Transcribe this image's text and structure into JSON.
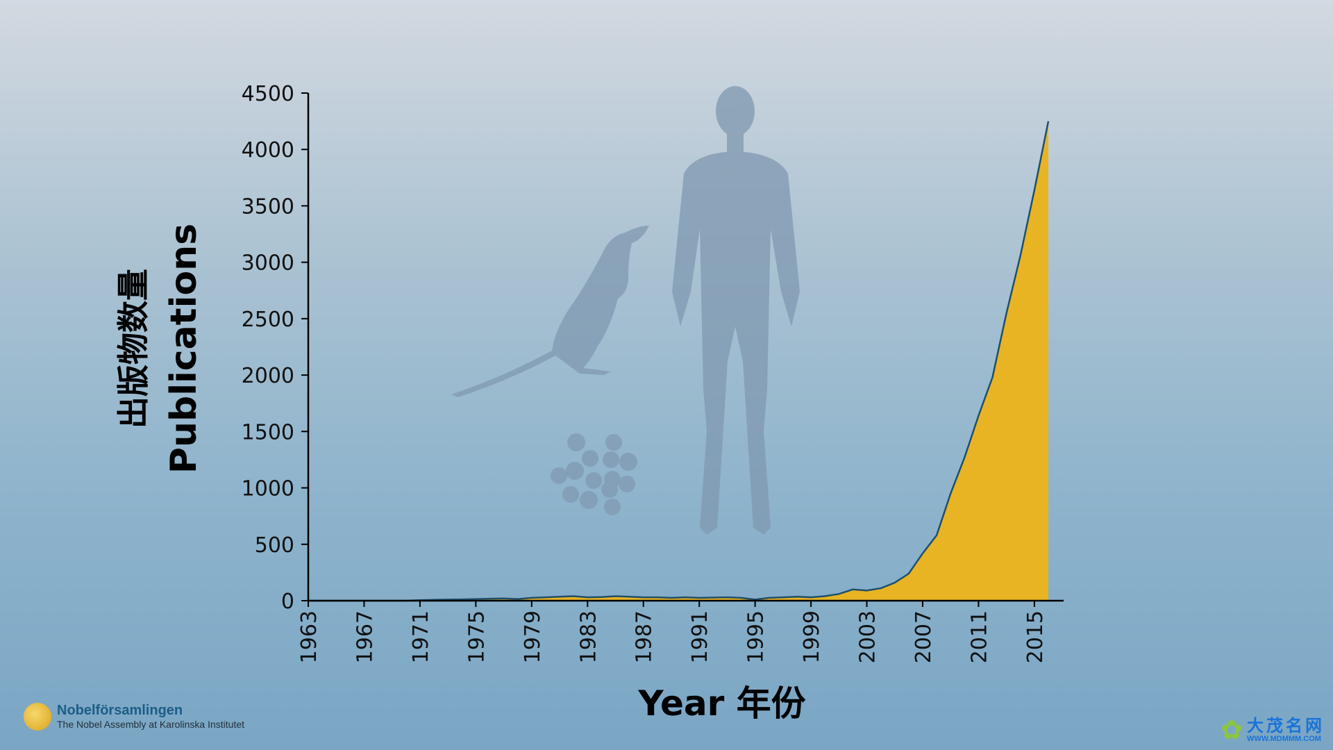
{
  "chart_data": {
    "type": "area",
    "xlabel": "Year 年份",
    "ylabel_en": "Publications",
    "ylabel_cn": "出版物数量",
    "x_ticks": [
      "1963",
      "1967",
      "1971",
      "1975",
      "1979",
      "1983",
      "1987",
      "1991",
      "1995",
      "1999",
      "2003",
      "2007",
      "2011",
      "2015"
    ],
    "y_ticks": [
      0,
      500,
      1000,
      1500,
      2000,
      2500,
      3000,
      3500,
      4000,
      4500
    ],
    "xlim": [
      1963,
      2017
    ],
    "ylim": [
      0,
      4500
    ],
    "grid": false,
    "fill_color": "#e8b423",
    "line_color": "#1f4f6b",
    "series": [
      {
        "x": [
          1963,
          1964,
          1965,
          1966,
          1967,
          1968,
          1969,
          1970,
          1971,
          1972,
          1973,
          1974,
          1975,
          1976,
          1977,
          1978,
          1979,
          1980,
          1981,
          1982,
          1983,
          1984,
          1985,
          1986,
          1987,
          1988,
          1989,
          1990,
          1991,
          1992,
          1993,
          1994,
          1995,
          1996,
          1997,
          1998,
          1999,
          2000,
          2001,
          2002,
          2003,
          2004,
          2005,
          2006,
          2007,
          2008,
          2009,
          2010,
          2011,
          2012,
          2013,
          2014,
          2015,
          2016
        ],
        "y": [
          0,
          0,
          0,
          0,
          0,
          0,
          0,
          0,
          5,
          8,
          10,
          12,
          15,
          18,
          20,
          15,
          25,
          30,
          35,
          40,
          30,
          32,
          40,
          35,
          30,
          30,
          25,
          30,
          25,
          28,
          30,
          25,
          10,
          25,
          30,
          35,
          30,
          40,
          60,
          100,
          90,
          110,
          160,
          240,
          420,
          580,
          950,
          1270,
          1640,
          1980,
          2550,
          3060,
          3640,
          4250
        ]
      }
    ]
  },
  "branding": {
    "left_title": "Nobelförsamlingen",
    "left_sub": "The Nobel Assembly at Karolinska Institutet",
    "right_cn": "大茂名网",
    "right_url": "WWW.MDMMM.COM"
  }
}
